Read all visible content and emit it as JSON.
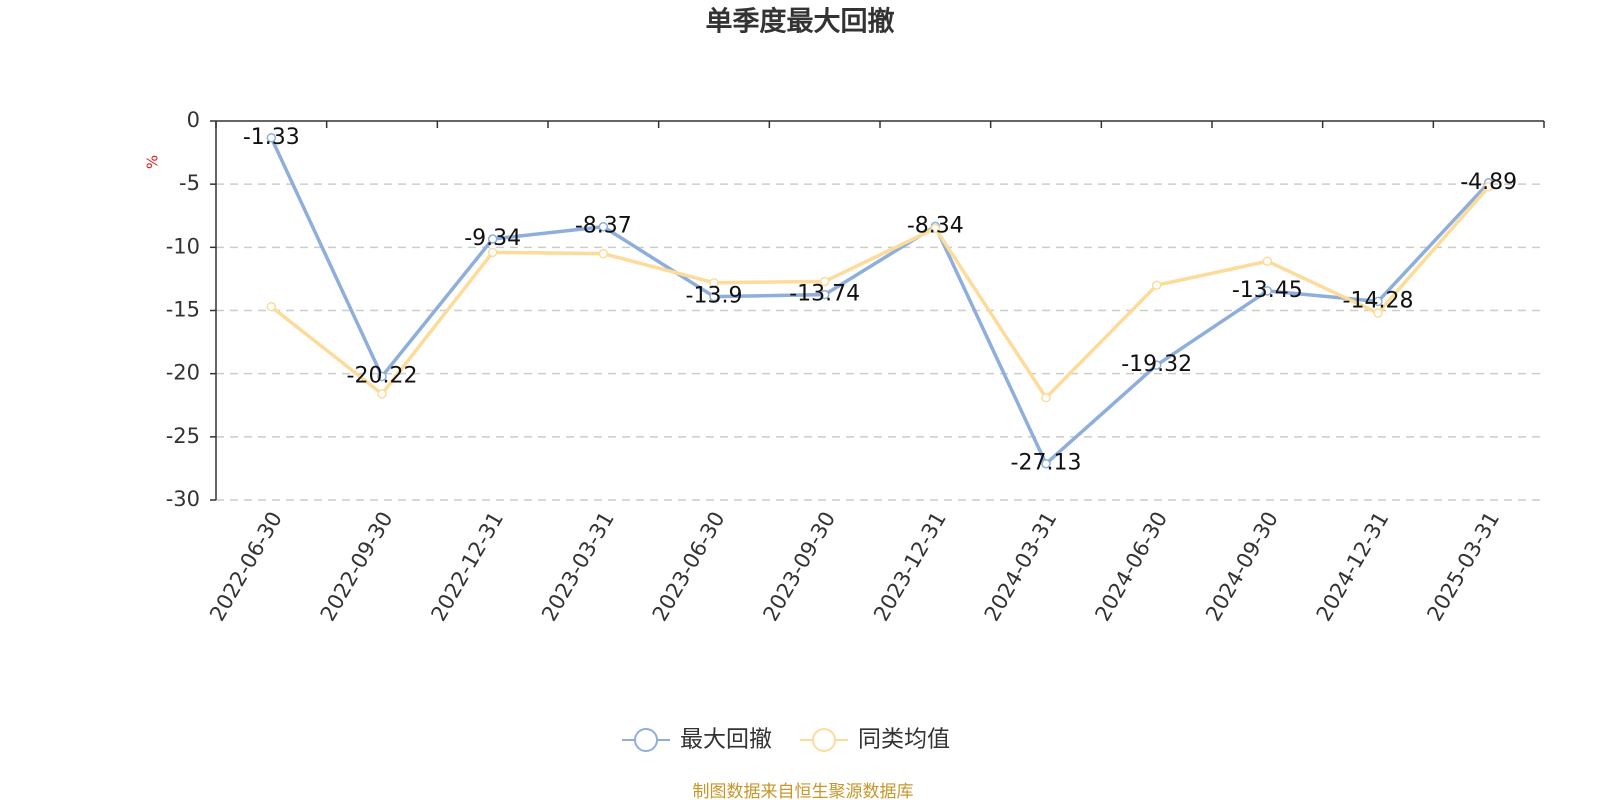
{
  "chart_data": {
    "type": "line",
    "title": "单季度最大回撤",
    "y_label": "%",
    "source": "制图数据来自恒生聚源数据库",
    "categories": [
      "2022-06-30",
      "2022-09-30",
      "2022-12-31",
      "2023-03-31",
      "2023-06-30",
      "2023-09-30",
      "2023-12-31",
      "2024-03-31",
      "2024-06-30",
      "2024-09-30",
      "2024-12-31",
      "2025-03-31"
    ],
    "series": [
      {
        "name": "最大回撤",
        "color": "#8eaedb",
        "values": [
          -1.33,
          -20.22,
          -9.34,
          -8.37,
          -13.9,
          -13.74,
          -8.34,
          -27.13,
          -19.32,
          -13.45,
          -14.28,
          -4.89
        ],
        "data_labels": true
      },
      {
        "name": "同类均值",
        "color": "#fddb9a",
        "values": [
          -14.7,
          -21.6,
          -10.4,
          -10.5,
          -12.8,
          -12.7,
          -8.5,
          -21.9,
          -13.0,
          -11.1,
          -15.2,
          -5.2
        ],
        "data_labels": false
      }
    ],
    "ylim": [
      -30,
      0
    ],
    "yticks": [
      0,
      -5,
      -10,
      -15,
      -20,
      -25,
      -30
    ],
    "grid": true,
    "legend": "bottom"
  }
}
